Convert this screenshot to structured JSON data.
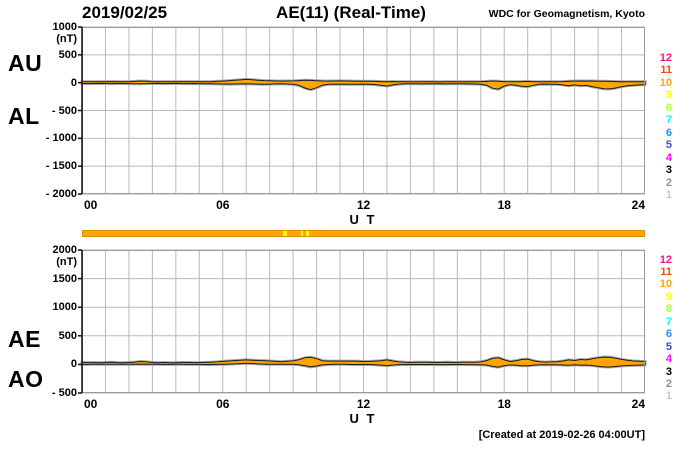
{
  "header": {
    "date": "2019/02/25",
    "title": "AE(11) (Real-Time)",
    "credit": "WDC for Geomagnetism, Kyoto"
  },
  "footer": {
    "created": "[Created at 2019-02-26 04:00UT]"
  },
  "colors": {
    "band": "#FFA500",
    "outline": "#1c1c1c",
    "halo": "#a9a9a9",
    "grid": "#b8b8b8",
    "frame": "#999999",
    "axis": "#111111",
    "bar_border": "#d89300",
    "text": "#000000"
  },
  "stations": {
    "labels": [
      "12",
      "11",
      "10",
      "9",
      "8",
      "7",
      "6",
      "5",
      "4",
      "3",
      "2",
      "1"
    ],
    "colors": [
      "#f0128c",
      "#ff4500",
      "#ffa500",
      "#ffff00",
      "#aaff2f",
      "#00ffff",
      "#1e90ff",
      "#4848d8",
      "#ff00ff",
      "#000000",
      "#909090",
      "#c8c8c8"
    ]
  },
  "availability_bar": {
    "base_color": "#FFA500",
    "gap_color": "#FFFF00",
    "gaps": [
      {
        "t0": 8.57,
        "t1": 8.74
      },
      {
        "t0": 9.33,
        "t1": 9.42
      },
      {
        "t0": 9.52,
        "t1": 9.65
      }
    ]
  },
  "chart_data": [
    {
      "type": "area",
      "label_top": "AU",
      "label_bottom": "AL",
      "unit": "(nT)",
      "xlabel": "U T",
      "ylim": [
        -2000,
        1000
      ],
      "step_hours": 0.25,
      "yticks": [
        {
          "v": 1000,
          "label": "1000"
        },
        {
          "v": 500,
          "label": "500"
        },
        {
          "v": 0,
          "label": "0"
        },
        {
          "v": -500,
          "label": "- 500"
        },
        {
          "v": -1000,
          "label": "- 1000"
        },
        {
          "v": -1500,
          "label": "- 1500"
        },
        {
          "v": -2000,
          "label": "- 2000"
        }
      ],
      "xticks": [
        {
          "t": 0,
          "label": "00"
        },
        {
          "t": 6,
          "label": "06"
        },
        {
          "t": 12,
          "label": "12"
        },
        {
          "t": 18,
          "label": "18"
        },
        {
          "t": 24,
          "label": "24"
        }
      ],
      "series": [
        {
          "name": "AU",
          "values": [
            18,
            16,
            17,
            15,
            18,
            20,
            17,
            16,
            18,
            22,
            30,
            26,
            18,
            16,
            17,
            15,
            16,
            18,
            17,
            16,
            15,
            17,
            18,
            22,
            28,
            35,
            42,
            50,
            58,
            52,
            44,
            38,
            34,
            30,
            28,
            30,
            32,
            38,
            45,
            40,
            35,
            30,
            28,
            30,
            32,
            30,
            28,
            26,
            25,
            24,
            22,
            20,
            18,
            20,
            18,
            16,
            15,
            16,
            17,
            16,
            15,
            14,
            16,
            15,
            16,
            17,
            16,
            15,
            16,
            22,
            30,
            24,
            18,
            16,
            18,
            20,
            22,
            18,
            16,
            15,
            16,
            18,
            20,
            24,
            28,
            30,
            28,
            30,
            26,
            24,
            22,
            20,
            18,
            16,
            15,
            16,
            15
          ]
        },
        {
          "name": "AL",
          "values": [
            -14,
            -16,
            -15,
            -13,
            -15,
            -17,
            -15,
            -14,
            -16,
            -18,
            -20,
            -17,
            -15,
            -14,
            -16,
            -15,
            -14,
            -16,
            -17,
            -15,
            -16,
            -18,
            -20,
            -22,
            -24,
            -25,
            -24,
            -22,
            -20,
            -22,
            -25,
            -28,
            -25,
            -22,
            -20,
            -24,
            -30,
            -50,
            -95,
            -125,
            -90,
            -45,
            -30,
            -28,
            -26,
            -28,
            -30,
            -28,
            -26,
            -28,
            -35,
            -45,
            -60,
            -40,
            -25,
            -20,
            -18,
            -20,
            -22,
            -20,
            -18,
            -20,
            -22,
            -20,
            -18,
            -20,
            -22,
            -24,
            -28,
            -45,
            -100,
            -115,
            -60,
            -35,
            -45,
            -65,
            -70,
            -45,
            -30,
            -25,
            -28,
            -30,
            -40,
            -55,
            -40,
            -55,
            -50,
            -70,
            -90,
            -110,
            -112,
            -95,
            -70,
            -55,
            -45,
            -40,
            -35
          ]
        }
      ]
    },
    {
      "type": "area",
      "label_top": "AE",
      "label_bottom": "AO",
      "unit": "(nT)",
      "xlabel": "U T",
      "ylim": [
        -500,
        2000
      ],
      "step_hours": 0.25,
      "yticks": [
        {
          "v": 2000,
          "label": "2000"
        },
        {
          "v": 1500,
          "label": "1500"
        },
        {
          "v": 1000,
          "label": "1000"
        },
        {
          "v": 500,
          "label": "500"
        },
        {
          "v": 0,
          "label": "0"
        },
        {
          "v": -500,
          "label": "- 500"
        }
      ],
      "xticks": [
        {
          "t": 0,
          "label": "00"
        },
        {
          "t": 6,
          "label": "06"
        },
        {
          "t": 12,
          "label": "12"
        },
        {
          "t": 18,
          "label": "18"
        },
        {
          "t": 24,
          "label": "24"
        }
      ],
      "series": [
        {
          "name": "AE",
          "values": [
            32,
            32,
            32,
            28,
            33,
            37,
            32,
            30,
            34,
            40,
            50,
            43,
            33,
            30,
            33,
            30,
            30,
            34,
            34,
            31,
            31,
            35,
            38,
            44,
            52,
            60,
            66,
            72,
            78,
            74,
            69,
            66,
            59,
            52,
            48,
            54,
            62,
            80,
            115,
            125,
            100,
            65,
            58,
            58,
            58,
            58,
            58,
            54,
            51,
            52,
            57,
            65,
            78,
            60,
            43,
            36,
            33,
            36,
            39,
            36,
            33,
            34,
            38,
            35,
            34,
            37,
            38,
            39,
            44,
            67,
            105,
            115,
            78,
            51,
            63,
            85,
            92,
            63,
            46,
            40,
            44,
            48,
            60,
            79,
            68,
            85,
            78,
            100,
            116,
            128,
            125,
            108,
            88,
            71,
            60,
            56,
            51
          ]
        },
        {
          "name": "AO",
          "values": [
            2,
            0,
            1,
            1,
            1,
            1,
            1,
            1,
            1,
            2,
            5,
            4,
            1,
            1,
            0,
            0,
            1,
            1,
            0,
            0,
            0,
            -1,
            -1,
            0,
            2,
            5,
            9,
            14,
            19,
            15,
            9,
            5,
            4,
            4,
            4,
            3,
            1,
            -6,
            -25,
            -42,
            -28,
            -8,
            -1,
            1,
            3,
            1,
            -1,
            -1,
            0,
            -2,
            -6,
            -12,
            -21,
            -10,
            -3,
            -2,
            -1,
            -2,
            -2,
            -2,
            -1,
            -3,
            -3,
            -2,
            -1,
            -1,
            -3,
            -4,
            -6,
            -11,
            -35,
            -48,
            -21,
            -9,
            -13,
            -22,
            -24,
            -13,
            -7,
            -5,
            -6,
            -6,
            -10,
            -15,
            -6,
            -12,
            -11,
            -20,
            -32,
            -43,
            -45,
            -37,
            -26,
            -19,
            -15,
            -12,
            -9
          ]
        }
      ]
    }
  ]
}
